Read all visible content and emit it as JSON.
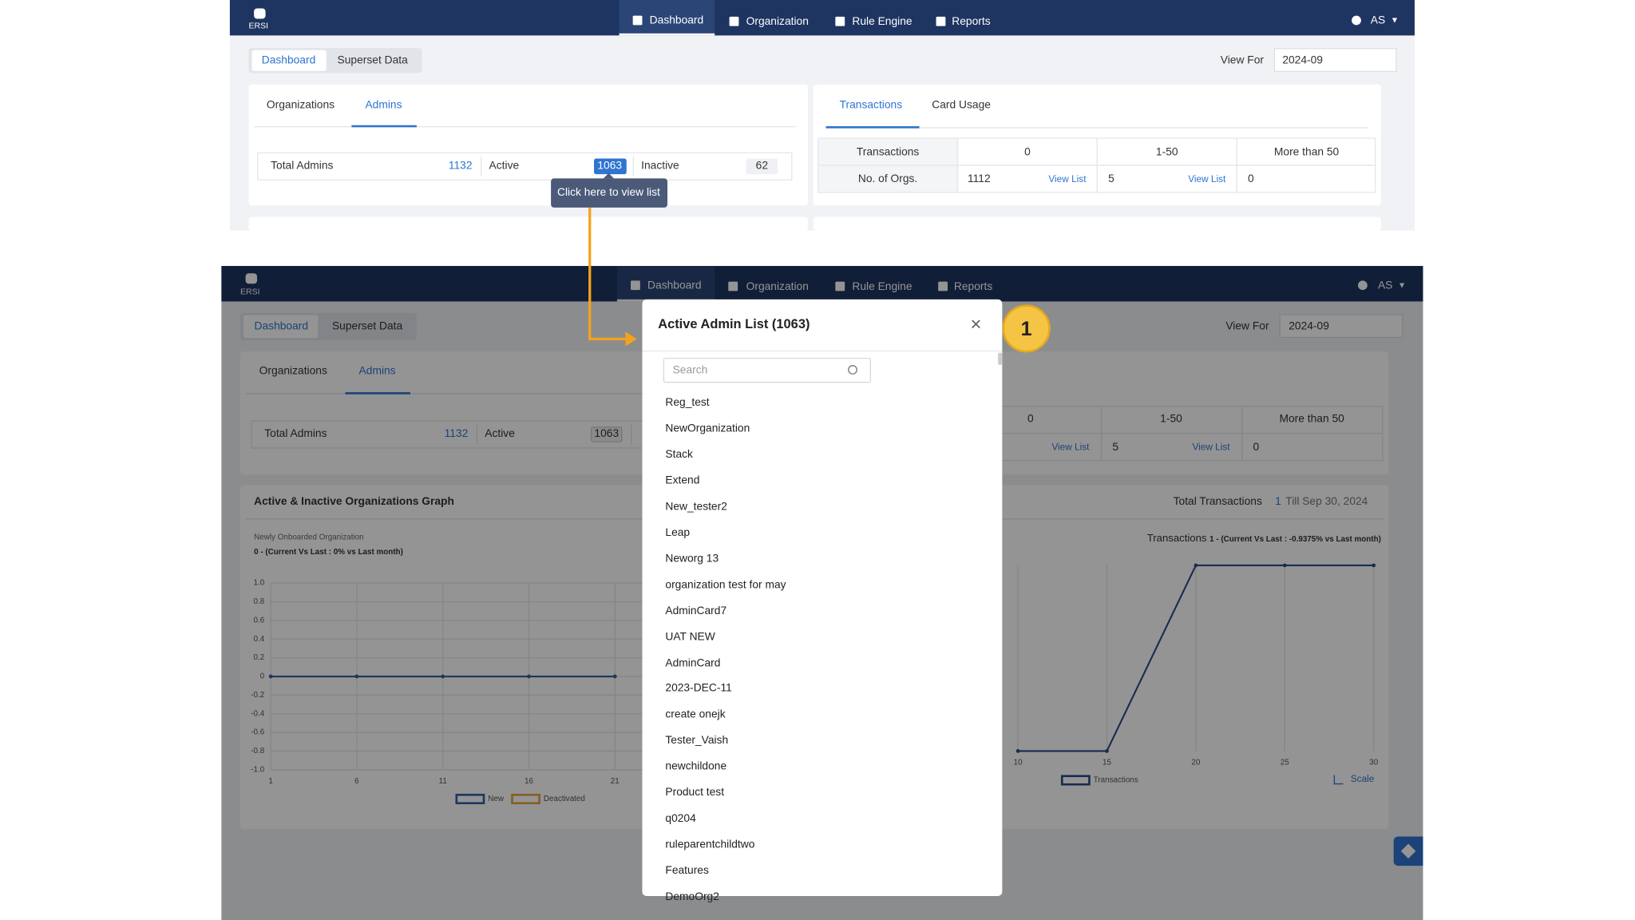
{
  "top": {
    "nav": {
      "logo": "ERSI",
      "items": [
        "Dashboard",
        "Organization",
        "Rule Engine",
        "Reports"
      ],
      "user": "AS"
    },
    "tabs": [
      "Dashboard",
      "Superset Data"
    ],
    "view_for": {
      "label": "View For",
      "value": "2024-09"
    },
    "admins_card": {
      "tabs": [
        "Organizations",
        "Admins"
      ],
      "stats": [
        {
          "label": "Total Admins",
          "value": "1132"
        },
        {
          "label": "Active",
          "value": "1063"
        },
        {
          "label": "Inactive",
          "value": "62"
        }
      ],
      "tooltip": "Click here to view list"
    },
    "transactions_card": {
      "tabs": [
        "Transactions",
        "Card Usage"
      ],
      "header": [
        "Transactions",
        "0",
        "1-50",
        "More than 50"
      ],
      "row": {
        "label": "No. of Orgs.",
        "cells": [
          {
            "value": "1112",
            "link": "View List"
          },
          {
            "value": "5",
            "link": "View List"
          },
          {
            "value": "0"
          }
        ]
      }
    }
  },
  "bottom": {
    "graph_card": {
      "title": "Active & Inactive Organizations Graph",
      "total_label": "Total Transactions",
      "total_value": "1",
      "till": "Till Sep 30, 2024",
      "left_chart": {
        "type": "line",
        "subtitle": "Newly Onboarded Organization",
        "summary": "0 - (Current Vs Last : 0% vs Last month)",
        "x": [
          1,
          6,
          11,
          16,
          21
        ],
        "xlim": [
          1,
          31
        ],
        "xticks": [
          1,
          6,
          11,
          16,
          21
        ],
        "ylim": [
          -1,
          1
        ],
        "yticks": [
          {
            "value": 1,
            "label": "1.0"
          },
          0.8,
          0.6,
          0.4,
          0.2,
          0,
          -0.2,
          -0.4,
          -0.6,
          -0.8,
          {
            "value": -1,
            "label": "-1.0"
          }
        ],
        "series": [
          {
            "name": "New",
            "color": "#2f5fa8",
            "values": [
              0,
              0,
              0,
              0,
              0
            ]
          },
          {
            "name": "Deactivated",
            "color": "#e8a33d",
            "values": [
              0,
              0,
              0,
              0,
              0
            ]
          }
        ]
      },
      "right_chart": {
        "type": "line",
        "title": "Transactions",
        "summary": "1 - (Current Vs Last : -0.9375% vs Last month)",
        "x": [
          10,
          15,
          20,
          25,
          30
        ],
        "xlim": [
          10,
          30
        ],
        "xticks": [
          10,
          15,
          20,
          25,
          30
        ],
        "ylim": [
          0,
          1
        ],
        "series": [
          {
            "name": "Transactions",
            "color": "#2d4a8a",
            "values": [
              0,
              0,
              1,
              1,
              1
            ]
          }
        ],
        "scale_label": "Scale"
      }
    },
    "modal": {
      "title": "Active Admin List (1063)",
      "search_placeholder": "Search",
      "items": [
        "Reg_test",
        "NewOrganization",
        "Stack",
        "Extend",
        "New_tester2",
        "Leap",
        "Neworg 13",
        "organization test for may",
        "AdminCard7",
        "UAT NEW",
        "AdminCard",
        "2023-DEC-11",
        "create onejk",
        "Tester_Vaish",
        "newchildone",
        "Product test",
        "q0204",
        "ruleparentchildtwo",
        "Features",
        "DemoOrg2"
      ]
    },
    "step_badge": "1"
  }
}
